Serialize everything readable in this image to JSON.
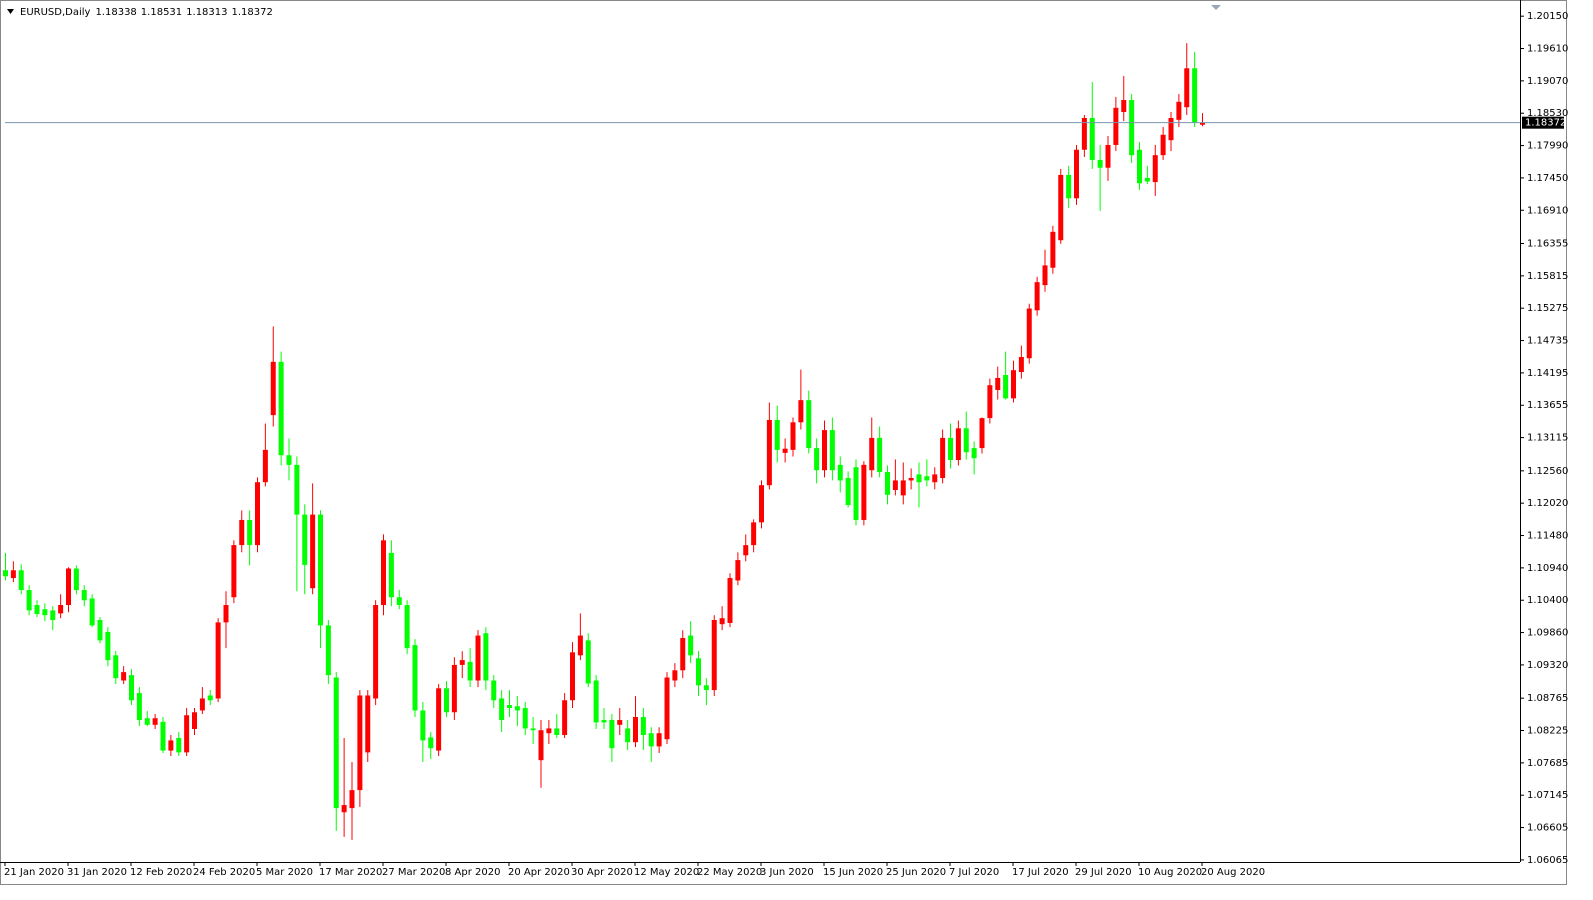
{
  "chart_data": {
    "type": "candlestick",
    "title": "EURUSD,Daily",
    "up_color": "#ff0000",
    "down_color": "#00ff00",
    "price_line_color": "#7a95b0",
    "grid": false,
    "categories": [
      "21 Jan 2020",
      null,
      null,
      null,
      null,
      null,
      null,
      null,
      "31 Jan 2020",
      null,
      null,
      null,
      null,
      null,
      null,
      null,
      "12 Feb 2020",
      null,
      null,
      null,
      null,
      null,
      null,
      null,
      "24 Feb 2020",
      null,
      null,
      null,
      null,
      null,
      null,
      null,
      "5 Mar 2020",
      null,
      null,
      null,
      null,
      null,
      null,
      null,
      "17 Mar 2020",
      null,
      null,
      null,
      null,
      null,
      null,
      null,
      "27 Mar 2020",
      null,
      null,
      null,
      null,
      null,
      null,
      null,
      "8 Apr 2020",
      null,
      null,
      null,
      null,
      null,
      null,
      null,
      "20 Apr 2020",
      null,
      null,
      null,
      null,
      null,
      null,
      null,
      "30 Apr 2020",
      null,
      null,
      null,
      null,
      null,
      null,
      null,
      "12 May 2020",
      null,
      null,
      null,
      null,
      null,
      null,
      null,
      "22 May 2020",
      null,
      null,
      null,
      null,
      null,
      null,
      null,
      "3 Jun 2020",
      null,
      null,
      null,
      null,
      null,
      null,
      null,
      "15 Jun 2020",
      null,
      null,
      null,
      null,
      null,
      null,
      null,
      "25 Jun 2020",
      null,
      null,
      null,
      null,
      null,
      null,
      null,
      "7 Jul 2020",
      null,
      null,
      null,
      null,
      null,
      null,
      null,
      "17 Jul 2020",
      null,
      null,
      null,
      null,
      null,
      null,
      null,
      "29 Jul 2020",
      null,
      null,
      null,
      null,
      null,
      null,
      null,
      "10 Aug 2020",
      null,
      null,
      null,
      null,
      null,
      null,
      null,
      "20 Aug 2020"
    ],
    "open": [
      1.109,
      1.1077,
      1.109,
      1.1057,
      1.1032,
      1.1025,
      1.1023,
      1.1018,
      1.1032,
      1.1093,
      1.1057,
      1.1043,
      1.1007,
      1.0987,
      1.0948,
      1.0906,
      1.0915,
      1.0885,
      1.0843,
      1.0832,
      1.0837,
      1.0789,
      1.081,
      1.0786,
      1.0825,
      1.0856,
      1.0881,
      1.0876,
      1.1003,
      1.1045,
      1.1132,
      1.1174,
      1.1132,
      1.1237,
      1.1349,
      1.1438,
      1.1282,
      1.1266,
      1.1183,
      1.106,
      1.1183,
      1.0998,
      1.0911,
      1.0686,
      1.0693,
      1.0723,
      1.0786,
      1.0876,
      1.1032,
      1.1119,
      1.1045,
      1.1032,
      1.0965,
      1.0856,
      1.0811,
      1.0789,
      1.0893,
      1.0853,
      1.0932,
      1.0937,
      1.0906,
      1.0985,
      1.0906,
      1.0876,
      1.0865,
      1.0863,
      1.086,
      1.0826,
      1.0773,
      1.0818,
      1.0826,
      1.0815,
      1.0873,
      1.0948,
      1.0973,
      1.0906,
      1.084,
      1.084,
      1.0832,
      1.0826,
      1.0803,
      1.0845,
      1.0818,
      1.0796,
      1.0808,
      1.0906,
      1.0923,
      1.0981,
      1.0943,
      1.0898,
      1.089,
      1.1,
      1.1002,
      1.1073,
      1.1115,
      1.1132,
      1.117,
      1.1232,
      1.1341,
      1.1286,
      1.1291,
      1.1337,
      1.1374,
      1.1294,
      1.1257,
      1.1324,
      1.1266,
      1.1244,
      1.1262,
      1.1174,
      1.1257,
      1.1311,
      1.1254,
      1.1224,
      1.1215,
      1.124,
      1.125,
      1.1247,
      1.1237,
      1.1244,
      1.1311,
      1.1274,
      1.1327,
      1.1294,
      1.1294,
      1.1344,
      1.1391,
      1.1416,
      1.1377,
      1.1421,
      1.1444,
      1.1524,
      1.1566,
      1.1595,
      1.1641,
      1.175,
      1.1711,
      1.1792,
      1.1845,
      1.1775,
      1.1762,
      1.18,
      1.1855,
      1.1875,
      1.1792,
      1.1745,
      1.1738,
      1.1783,
      1.1808,
      1.1842,
      1.1863,
      1.1928,
      1.18338
    ],
    "high": [
      1.1119,
      1.1105,
      1.11,
      1.1065,
      1.104,
      1.1035,
      1.103,
      1.105,
      1.1095,
      1.1098,
      1.1065,
      1.105,
      1.1012,
      1.0995,
      1.0955,
      1.093,
      1.0925,
      1.0895,
      1.0855,
      1.085,
      1.0845,
      1.0815,
      1.082,
      1.086,
      1.086,
      1.0895,
      1.089,
      1.101,
      1.1055,
      1.114,
      1.119,
      1.119,
      1.1245,
      1.1335,
      1.1497,
      1.1455,
      1.131,
      1.128,
      1.12,
      1.1235,
      1.119,
      1.1007,
      1.092,
      1.081,
      1.077,
      1.089,
      1.089,
      1.104,
      1.115,
      1.114,
      1.1057,
      1.104,
      1.0975,
      1.087,
      1.082,
      1.09,
      1.0905,
      1.0945,
      1.0955,
      1.096,
      1.099,
      1.0995,
      1.0915,
      1.089,
      1.089,
      1.088,
      1.087,
      1.0845,
      1.084,
      1.084,
      1.085,
      1.0885,
      1.097,
      1.1018,
      1.0985,
      1.0915,
      1.086,
      1.085,
      1.086,
      1.084,
      1.088,
      1.086,
      1.0828,
      1.0828,
      1.092,
      1.0935,
      1.099,
      1.1005,
      1.0955,
      1.091,
      1.1015,
      1.103,
      1.1085,
      1.112,
      1.115,
      1.1175,
      1.124,
      1.137,
      1.1365,
      1.131,
      1.1345,
      1.1425,
      1.139,
      1.131,
      1.134,
      1.1345,
      1.128,
      1.1255,
      1.1275,
      1.1272,
      1.1345,
      1.133,
      1.1265,
      1.1275,
      1.127,
      1.126,
      1.127,
      1.1275,
      1.1262,
      1.1325,
      1.1335,
      1.134,
      1.1355,
      1.1305,
      1.1345,
      1.141,
      1.143,
      1.1455,
      1.144,
      1.1465,
      1.1535,
      1.158,
      1.1625,
      1.1665,
      1.176,
      1.1765,
      1.18,
      1.185,
      1.1905,
      1.18,
      1.1815,
      1.188,
      1.1915,
      1.1885,
      1.1805,
      1.1765,
      1.18,
      1.183,
      1.1855,
      1.1885,
      1.197,
      1.1955,
      1.18531
    ],
    "low": [
      1.1073,
      1.107,
      1.105,
      1.1015,
      1.1012,
      1.1005,
      1.099,
      1.101,
      1.102,
      1.105,
      1.103,
      1.0995,
      1.0968,
      1.093,
      1.09,
      1.09,
      1.0865,
      1.083,
      1.083,
      1.0825,
      1.0785,
      1.078,
      1.078,
      1.078,
      1.0815,
      1.085,
      1.0865,
      1.087,
      1.096,
      1.1035,
      1.112,
      1.1098,
      1.112,
      1.123,
      1.133,
      1.1265,
      1.124,
      1.1055,
      1.105,
      1.105,
      1.096,
      1.09,
      1.0655,
      1.0645,
      1.064,
      1.0695,
      1.077,
      1.0865,
      1.1015,
      1.103,
      1.1025,
      1.095,
      1.0845,
      1.077,
      1.0775,
      1.078,
      1.0845,
      1.084,
      1.091,
      1.0895,
      1.0895,
      1.089,
      1.086,
      1.082,
      1.0845,
      1.083,
      1.0815,
      1.08,
      1.0727,
      1.08,
      1.081,
      1.081,
      1.086,
      1.094,
      1.0895,
      1.0825,
      1.0825,
      1.077,
      1.0815,
      1.079,
      1.0795,
      1.079,
      1.077,
      1.0785,
      1.08,
      1.0895,
      1.091,
      1.0935,
      1.088,
      1.0865,
      1.088,
      1.099,
      1.0995,
      1.1065,
      1.1105,
      1.112,
      1.116,
      1.1225,
      1.127,
      1.127,
      1.128,
      1.1325,
      1.1285,
      1.1235,
      1.1245,
      1.124,
      1.122,
      1.1195,
      1.1165,
      1.1165,
      1.1245,
      1.1245,
      1.12,
      1.1215,
      1.12,
      1.1225,
      1.1195,
      1.123,
      1.1225,
      1.1235,
      1.126,
      1.1265,
      1.1275,
      1.125,
      1.1285,
      1.1335,
      1.1375,
      1.1375,
      1.137,
      1.141,
      1.1435,
      1.1515,
      1.1555,
      1.1585,
      1.1635,
      1.1695,
      1.17,
      1.178,
      1.176,
      1.169,
      1.174,
      1.179,
      1.184,
      1.177,
      1.1725,
      1.1735,
      1.1715,
      1.1775,
      1.179,
      1.183,
      1.185,
      1.183,
      1.18313
    ],
    "close": [
      1.108,
      1.109,
      1.1057,
      1.1023,
      1.1017,
      1.1015,
      1.1007,
      1.1032,
      1.1093,
      1.1057,
      1.104,
      1.0998,
      1.0973,
      1.094,
      1.091,
      1.092,
      1.0873,
      1.084,
      1.0832,
      1.0843,
      1.0789,
      1.0806,
      1.0786,
      1.0848,
      1.0853,
      1.0876,
      1.0873,
      1.1003,
      1.1032,
      1.1132,
      1.1174,
      1.1132,
      1.1237,
      1.1291,
      1.1438,
      1.1282,
      1.1266,
      1.1183,
      1.1099,
      1.1183,
      1.0998,
      1.0915,
      1.0693,
      1.0698,
      1.0723,
      1.0881,
      1.0881,
      1.1032,
      1.114,
      1.1045,
      1.1032,
      1.096,
      1.0856,
      1.0806,
      1.0793,
      1.0893,
      1.0853,
      1.0932,
      1.094,
      1.0906,
      1.0981,
      1.0906,
      1.0873,
      1.084,
      1.086,
      1.0856,
      1.0826,
      1.0823,
      1.0823,
      1.0826,
      1.0815,
      1.0873,
      1.0953,
      1.0981,
      1.0901,
      1.0836,
      1.0836,
      1.0793,
      1.084,
      1.0803,
      1.0845,
      1.0815,
      1.0796,
      1.0818,
      1.0911,
      1.0923,
      1.0977,
      1.0948,
      1.0898,
      1.089,
      1.1007,
      1.101,
      1.1077,
      1.1107,
      1.1132,
      1.117,
      1.1232,
      1.1341,
      1.1291,
      1.1293,
      1.1337,
      1.1374,
      1.1294,
      1.1257,
      1.1324,
      1.1257,
      1.124,
      1.1199,
      1.1174,
      1.1266,
      1.1311,
      1.1254,
      1.1216,
      1.124,
      1.124,
      1.1244,
      1.1237,
      1.124,
      1.125,
      1.1311,
      1.1274,
      1.1327,
      1.1287,
      1.1277,
      1.1344,
      1.1399,
      1.1411,
      1.1377,
      1.1424,
      1.1446,
      1.1527,
      1.1571,
      1.1599,
      1.1655,
      1.175,
      1.1711,
      1.1792,
      1.1845,
      1.1775,
      1.1762,
      1.18,
      1.1862,
      1.1875,
      1.1783,
      1.1736,
      1.1739,
      1.1783,
      1.1817,
      1.1845,
      1.1872,
      1.1928,
      1.1837,
      1.18372
    ],
    "ylim": [
      1.0603,
      1.2042
    ],
    "yticks": [
      {
        "value": 1.2015,
        "label": "1.20150"
      },
      {
        "value": 1.1961,
        "label": "1.19610"
      },
      {
        "value": 1.1907,
        "label": "1.19070"
      },
      {
        "value": 1.1853,
        "label": "1.18530"
      },
      {
        "value": 1.1799,
        "label": "1.17990"
      },
      {
        "value": 1.1745,
        "label": "1.17450"
      },
      {
        "value": 1.1691,
        "label": "1.16910"
      },
      1.16355,
      1.15815,
      1.15275,
      1.14735,
      1.14195,
      1.13655,
      1.13115,
      {
        "value": 1.1256,
        "label": "1.12560"
      },
      {
        "value": 1.1202,
        "label": "1.12020"
      },
      {
        "value": 1.1148,
        "label": "1.11480"
      },
      {
        "value": 1.1094,
        "label": "1.10940"
      },
      {
        "value": 1.104,
        "label": "1.10400"
      },
      {
        "value": 1.0986,
        "label": "1.09860"
      },
      {
        "value": 1.0932,
        "label": "1.09320"
      },
      1.08765,
      1.08225,
      1.07685,
      1.07145,
      1.06605,
      1.06065
    ]
  }
}
